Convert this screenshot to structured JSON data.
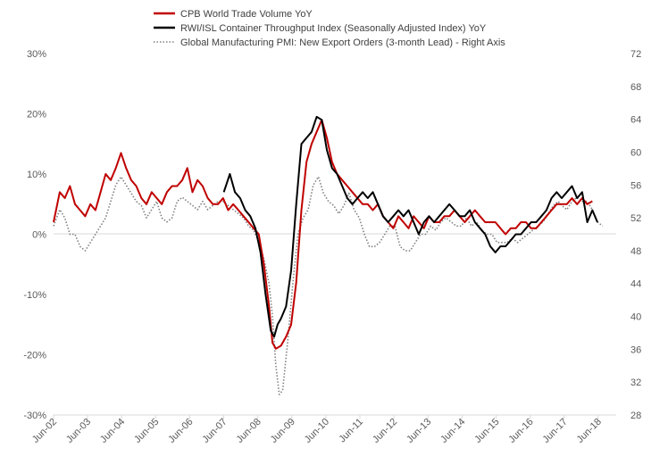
{
  "chart_data": {
    "type": "line",
    "title": "",
    "left_axis": {
      "unit": "percent",
      "ylim": [
        -30,
        30
      ],
      "ticks": [
        30,
        20,
        10,
        0,
        -10,
        -20,
        -30
      ],
      "tick_labels": [
        "30%",
        "20%",
        "10%",
        "0%",
        "-10%",
        "-20%",
        "-30%"
      ]
    },
    "right_axis": {
      "unit": "index",
      "ylim": [
        28,
        72
      ],
      "ticks": [
        72,
        68,
        64,
        60,
        56,
        52,
        48,
        44,
        40,
        36,
        32,
        28
      ],
      "tick_labels": [
        "72",
        "68",
        "64",
        "60",
        "56",
        "52",
        "48",
        "44",
        "40",
        "36",
        "32",
        "28"
      ]
    },
    "x_axis": {
      "start": "2002-06",
      "end": "2018-12",
      "tick_labels": [
        "Jun-02",
        "Jun-03",
        "Jun-04",
        "Jun-05",
        "Jun-06",
        "Jun-07",
        "Jun-08",
        "Jun-09",
        "Jun-10",
        "Jun-11",
        "Jun-12",
        "Jun-13",
        "Jun-14",
        "Jun-15",
        "Jun-16",
        "Jun-17",
        "Jun-18"
      ],
      "tick_positions": [
        2002.42,
        2003.42,
        2004.42,
        2005.42,
        2006.42,
        2007.42,
        2008.42,
        2009.42,
        2010.42,
        2011.42,
        2012.42,
        2013.42,
        2014.42,
        2015.42,
        2016.42,
        2017.42,
        2018.42
      ]
    },
    "series": [
      {
        "name": "CPB World Trade Volume YoY",
        "axis": "left",
        "color": "#c00000",
        "style": "solid",
        "x": [
          2002.42,
          2002.6,
          2002.75,
          2002.9,
          2003.05,
          2003.2,
          2003.35,
          2003.5,
          2003.65,
          2003.8,
          2003.95,
          2004.1,
          2004.25,
          2004.4,
          2004.55,
          2004.7,
          2004.85,
          2005.0,
          2005.15,
          2005.3,
          2005.45,
          2005.6,
          2005.75,
          2005.9,
          2006.05,
          2006.2,
          2006.35,
          2006.5,
          2006.65,
          2006.8,
          2006.95,
          2007.1,
          2007.25,
          2007.4,
          2007.55,
          2007.7,
          2007.85,
          2008.0,
          2008.15,
          2008.3,
          2008.45,
          2008.6,
          2008.75,
          2008.85,
          2008.95,
          2009.1,
          2009.25,
          2009.4,
          2009.55,
          2009.7,
          2009.85,
          2010.0,
          2010.15,
          2010.3,
          2010.45,
          2010.6,
          2010.75,
          2010.9,
          2011.05,
          2011.2,
          2011.35,
          2011.5,
          2011.65,
          2011.8,
          2011.95,
          2012.1,
          2012.25,
          2012.4,
          2012.55,
          2012.7,
          2012.85,
          2013.0,
          2013.15,
          2013.3,
          2013.45,
          2013.6,
          2013.75,
          2013.9,
          2014.05,
          2014.2,
          2014.35,
          2014.5,
          2014.65,
          2014.8,
          2014.95,
          2015.1,
          2015.25,
          2015.4,
          2015.55,
          2015.7,
          2015.85,
          2016.0,
          2016.15,
          2016.3,
          2016.45,
          2016.6,
          2016.75,
          2016.9,
          2017.05,
          2017.2,
          2017.35,
          2017.5,
          2017.65,
          2017.8,
          2017.95,
          2018.1,
          2018.25
        ],
        "values": [
          2,
          7,
          6,
          8,
          5,
          4,
          3,
          5,
          4,
          7,
          10,
          9,
          11,
          13.5,
          11,
          9,
          8,
          6,
          5,
          7,
          6,
          5,
          7,
          8,
          8,
          9,
          11,
          7,
          9,
          8,
          6,
          5,
          5,
          6,
          4,
          5,
          4,
          3,
          2,
          1,
          0,
          -5,
          -12,
          -18,
          -19,
          -18.5,
          -17,
          -15,
          -8,
          4,
          12,
          15,
          17,
          19,
          16,
          12,
          10,
          9,
          8,
          7,
          6,
          5,
          5,
          4,
          5,
          3,
          2,
          1,
          3,
          2,
          1,
          3,
          2,
          1,
          3,
          2,
          2,
          3,
          3,
          4,
          3,
          2,
          3,
          4,
          3,
          2,
          2,
          2,
          1,
          0,
          1,
          1,
          2,
          2,
          1,
          1,
          2,
          3,
          4,
          5,
          5,
          5,
          6,
          5,
          6,
          5,
          5.5
        ]
      },
      {
        "name": "RWI/ISL Container Throughput Index (Seasonally Adjusted Index) YoY",
        "axis": "left",
        "color": "#000000",
        "style": "solid",
        "x": [
          2007.42,
          2007.6,
          2007.75,
          2007.9,
          2008.05,
          2008.2,
          2008.35,
          2008.5,
          2008.65,
          2008.8,
          2008.9,
          2009.0,
          2009.1,
          2009.25,
          2009.4,
          2009.55,
          2009.7,
          2009.85,
          2010.0,
          2010.15,
          2010.3,
          2010.45,
          2010.6,
          2010.75,
          2010.9,
          2011.05,
          2011.2,
          2011.35,
          2011.5,
          2011.65,
          2011.8,
          2011.95,
          2012.1,
          2012.25,
          2012.4,
          2012.55,
          2012.7,
          2012.85,
          2013.0,
          2013.15,
          2013.3,
          2013.45,
          2013.6,
          2013.75,
          2013.9,
          2014.05,
          2014.2,
          2014.35,
          2014.5,
          2014.65,
          2014.8,
          2014.95,
          2015.1,
          2015.25,
          2015.4,
          2015.55,
          2015.7,
          2015.85,
          2016.0,
          2016.15,
          2016.3,
          2016.45,
          2016.6,
          2016.75,
          2016.9,
          2017.05,
          2017.2,
          2017.35,
          2017.5,
          2017.65,
          2017.8,
          2017.95,
          2018.1,
          2018.25,
          2018.4
        ],
        "values": [
          7,
          10,
          7,
          6,
          4,
          3,
          1,
          -3,
          -10,
          -16,
          -17,
          -15,
          -14,
          -12,
          -6,
          5,
          15,
          16,
          17,
          19.5,
          19,
          14,
          11,
          10,
          8,
          6,
          5,
          6,
          7,
          6,
          7,
          5,
          3,
          2,
          3,
          4,
          3,
          4,
          2,
          0,
          2,
          3,
          2,
          3,
          4,
          5,
          4,
          3,
          3,
          4,
          2,
          1,
          0,
          -2,
          -3,
          -2,
          -2,
          -1,
          0,
          0,
          1,
          2,
          2,
          3,
          4,
          6,
          7,
          6,
          7,
          8,
          6,
          7,
          2,
          4,
          2
        ]
      },
      {
        "name": "Global Manufacturing PMI: New Export Orders (3-month Lead) - Right Axis",
        "axis": "right",
        "color": "#808080",
        "style": "dotted",
        "x": [
          2002.42,
          2002.6,
          2002.75,
          2002.9,
          2003.05,
          2003.2,
          2003.35,
          2003.5,
          2003.65,
          2003.8,
          2003.95,
          2004.1,
          2004.25,
          2004.4,
          2004.55,
          2004.7,
          2004.85,
          2005.0,
          2005.15,
          2005.3,
          2005.45,
          2005.6,
          2005.75,
          2005.9,
          2006.05,
          2006.2,
          2006.35,
          2006.5,
          2006.65,
          2006.8,
          2006.95,
          2007.1,
          2007.25,
          2007.4,
          2007.55,
          2007.7,
          2007.85,
          2008.0,
          2008.15,
          2008.3,
          2008.45,
          2008.6,
          2008.75,
          2008.85,
          2008.95,
          2009.05,
          2009.15,
          2009.3,
          2009.45,
          2009.6,
          2009.75,
          2009.9,
          2010.05,
          2010.2,
          2010.35,
          2010.5,
          2010.65,
          2010.8,
          2010.95,
          2011.1,
          2011.25,
          2011.4,
          2011.55,
          2011.7,
          2011.85,
          2012.0,
          2012.15,
          2012.3,
          2012.45,
          2012.6,
          2012.75,
          2012.9,
          2013.05,
          2013.2,
          2013.35,
          2013.5,
          2013.65,
          2013.8,
          2013.95,
          2014.1,
          2014.25,
          2014.4,
          2014.55,
          2014.7,
          2014.85,
          2015.0,
          2015.15,
          2015.3,
          2015.45,
          2015.6,
          2015.75,
          2015.9,
          2016.05,
          2016.2,
          2016.35,
          2016.5,
          2016.65,
          2016.8,
          2016.95,
          2017.1,
          2017.25,
          2017.35,
          2017.5,
          2017.65,
          2017.8,
          2017.95,
          2018.1,
          2018.25,
          2018.4,
          2018.55
        ],
        "values": [
          51,
          53,
          52,
          50,
          50,
          48.5,
          48,
          49,
          50,
          51,
          52,
          54,
          56,
          57,
          56,
          55,
          54,
          53.5,
          52,
          53,
          54,
          52,
          51.5,
          52,
          54,
          54.5,
          54,
          53.5,
          53,
          54,
          53,
          53.5,
          54,
          54,
          53.5,
          53,
          52.5,
          52,
          51,
          50.5,
          49,
          47,
          44,
          40,
          34,
          30.5,
          31,
          37,
          44,
          50,
          52,
          53,
          56,
          57,
          55,
          54,
          53.5,
          52.5,
          53.5,
          55,
          53,
          52,
          50,
          48.5,
          48.5,
          49,
          50,
          51,
          51,
          48.5,
          48,
          48,
          49,
          50,
          50,
          51,
          50.5,
          51.5,
          52,
          51.5,
          51,
          51,
          52,
          51,
          51.5,
          50.5,
          50,
          50,
          49,
          49,
          49,
          49.5,
          49,
          49.5,
          50,
          50.5,
          51,
          51.5,
          52.5,
          53.5,
          54,
          53.5,
          53,
          54,
          54.5,
          54,
          54,
          53,
          51.5,
          51
        ]
      }
    ],
    "legend": {
      "placement": "top",
      "entries": [
        "CPB World Trade Volume YoY",
        "RWI/ISL Container Throughput Index (Seasonally Adjusted Index) YoY",
        "Global Manufacturing PMI: New Export Orders (3-month Lead) - Right Axis"
      ]
    },
    "grid": false
  }
}
